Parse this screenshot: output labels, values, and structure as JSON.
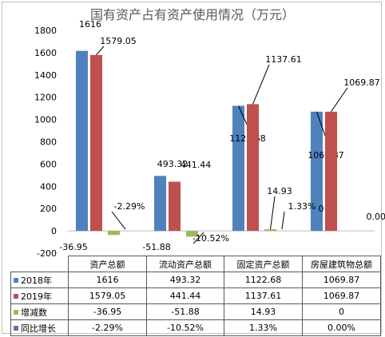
{
  "chart_data": {
    "type": "bar",
    "title": "国有资产占有资产使用情况（万元）",
    "categories": [
      "资产总额",
      "流动资产总额",
      "固定资产总额",
      "房屋建筑物总额"
    ],
    "series": [
      {
        "name": "2018年",
        "color": "#4f81bd",
        "values": [
          1616,
          493.32,
          1122.68,
          1069.87
        ],
        "labels": [
          "1616",
          "493.32",
          "1122.68",
          "1069.87"
        ]
      },
      {
        "name": "2019年",
        "color": "#c0504d",
        "values": [
          1579.05,
          441.44,
          1137.61,
          1069.87
        ],
        "labels": [
          "1579.05",
          "441.44",
          "1137.61",
          "1069.87"
        ]
      },
      {
        "name": "增减数",
        "color": "#9bbb59",
        "values": [
          -36.95,
          -51.88,
          14.93,
          0
        ],
        "labels": [
          "-36.95",
          "-51.88",
          "14.93",
          "0"
        ]
      },
      {
        "name": "同比增长",
        "color": "#8064a2",
        "values": [
          -2.29,
          -10.52,
          1.33,
          0
        ],
        "labels": [
          "-2.29%",
          "-10.52%",
          "1.33%",
          "0.00%"
        ]
      }
    ],
    "table_values": [
      [
        "1616",
        "493.32",
        "1122.68",
        "1069.87"
      ],
      [
        "1579.05",
        "441.44",
        "1137.61",
        "1069.87"
      ],
      [
        "-36.95",
        "-51.88",
        "14.93",
        "0"
      ],
      [
        "-2.29%",
        "-10.52%",
        "1.33%",
        "0.00%"
      ]
    ],
    "ylim": [
      -200,
      1800
    ],
    "yticks": [
      -200,
      0,
      200,
      400,
      600,
      800,
      1000,
      1200,
      1400,
      1600,
      1800
    ],
    "grid": false,
    "legend": "data-table"
  }
}
